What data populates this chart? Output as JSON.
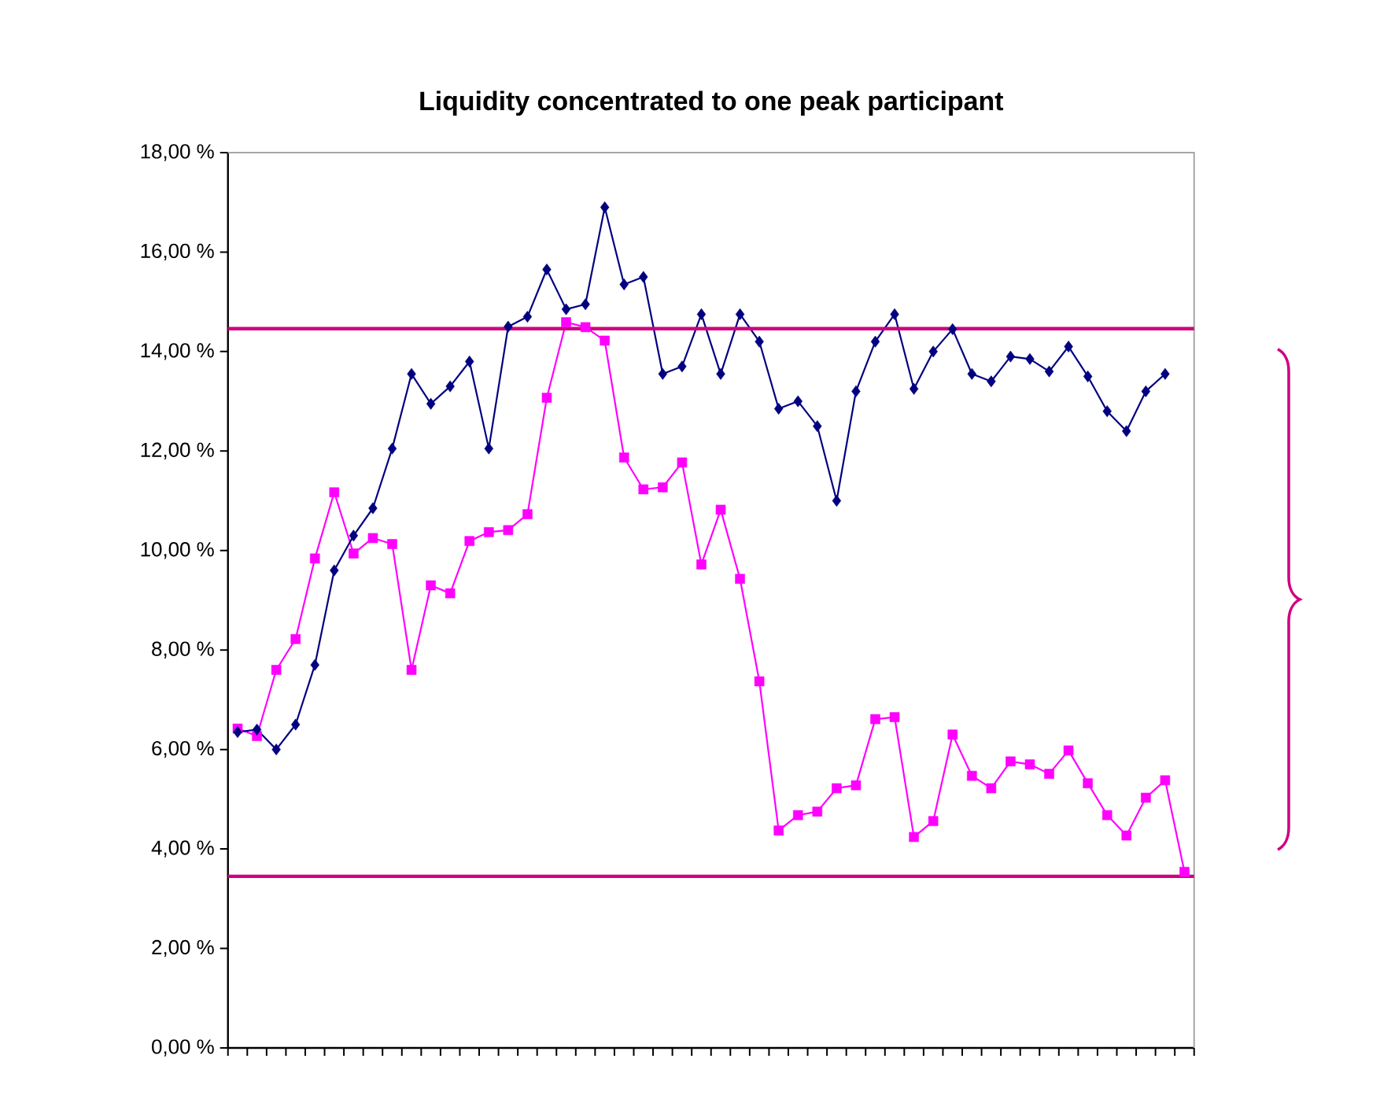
{
  "chart_data": {
    "type": "line",
    "title": "Liquidity concentrated to one peak participant",
    "categories": [
      null,
      null,
      null,
      null,
      null,
      null,
      null,
      null,
      null,
      null,
      null,
      null,
      null,
      null,
      null,
      null,
      null,
      null,
      null,
      null,
      null,
      null,
      null,
      null,
      null,
      null,
      null,
      null,
      null,
      null,
      null,
      null,
      null,
      null,
      null,
      null,
      null,
      null,
      null,
      null,
      null,
      null,
      null,
      null,
      null,
      null,
      null,
      null,
      null,
      null
    ],
    "series": [
      {
        "color": "#000080",
        "marker": "diamond",
        "values": [
          6.35,
          6.4,
          6.0,
          6.5,
          7.7,
          9.6,
          10.3,
          10.85,
          12.05,
          13.55,
          12.95,
          13.3,
          13.8,
          12.05,
          14.5,
          14.7,
          15.65,
          14.85,
          14.95,
          16.9,
          15.35,
          15.5,
          13.55,
          13.7,
          14.75,
          13.55,
          14.75,
          14.2,
          12.85,
          13.0,
          12.5,
          11.0,
          13.2,
          14.2,
          14.75,
          13.25,
          14.0,
          14.45,
          13.55,
          13.4,
          13.9,
          13.85,
          13.6,
          14.1,
          13.5,
          12.8,
          12.4,
          13.2,
          13.55,
          null
        ]
      },
      {
        "color": "#ff00ff",
        "marker": "square",
        "values": [
          6.42,
          6.27,
          7.6,
          8.22,
          9.84,
          11.17,
          9.94,
          10.25,
          10.13,
          7.6,
          9.3,
          9.14,
          10.19,
          10.37,
          10.41,
          10.73,
          13.07,
          14.59,
          14.49,
          14.22,
          11.87,
          11.23,
          11.27,
          11.77,
          9.72,
          10.82,
          9.43,
          7.37,
          4.37,
          4.68,
          4.75,
          5.22,
          5.28,
          6.61,
          6.65,
          4.24,
          4.56,
          6.3,
          5.47,
          5.22,
          5.76,
          5.7,
          5.51,
          5.98,
          5.32,
          4.68,
          4.27,
          5.03,
          5.38,
          3.54
        ]
      }
    ],
    "ylim": [
      0,
      18
    ],
    "yticks": [
      {
        "value": 0,
        "label": "0,00 %"
      },
      {
        "value": 2,
        "label": "2,00 %"
      },
      {
        "value": 4,
        "label": "4,00 %"
      },
      {
        "value": 6,
        "label": "6,00 %"
      },
      {
        "value": 8,
        "label": "8,00 %"
      },
      {
        "value": 10,
        "label": "10,00 %"
      },
      {
        "value": 12,
        "label": "12,00 %"
      },
      {
        "value": 14,
        "label": "14,00 %"
      },
      {
        "value": 16,
        "label": "16,00 %"
      },
      {
        "value": 18,
        "label": "18,00 %"
      }
    ],
    "ref_lines": [
      {
        "axis": "y",
        "value": 14.46,
        "color": "#d0007f"
      },
      {
        "axis": "y",
        "value": 3.45,
        "color": "#d0007f"
      }
    ],
    "grid": false
  }
}
